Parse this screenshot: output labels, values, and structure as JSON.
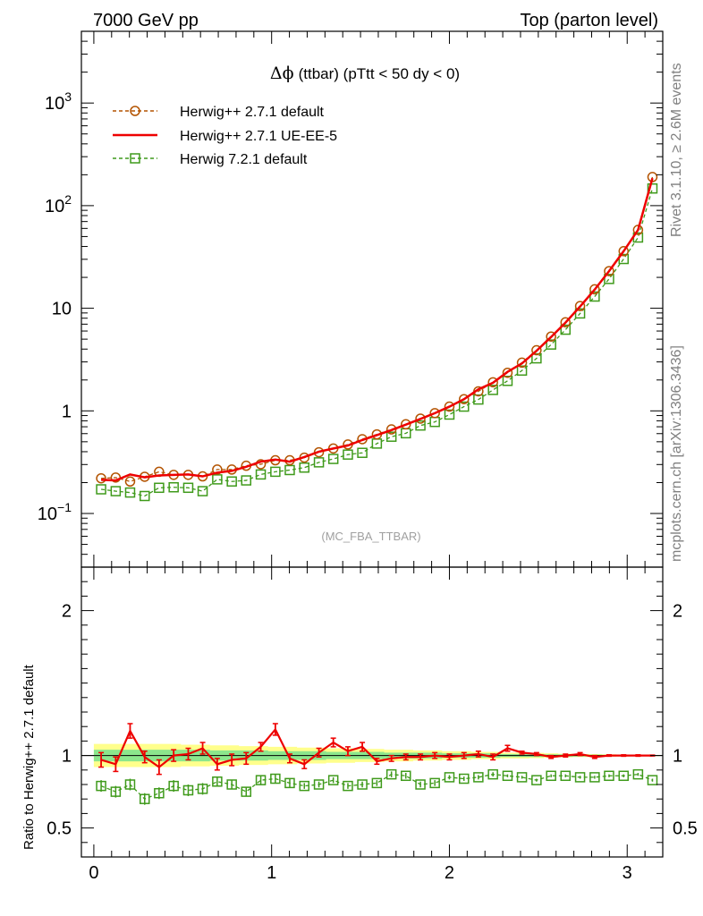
{
  "header": {
    "left_title": "7000 GeV pp",
    "right_title": "Top (parton level)"
  },
  "side_labels": {
    "rivet": "Rivet 3.1.10, ≥ 2.6M events",
    "mcplots": "mcplots.cern.ch [arXiv:1306.3436]"
  },
  "colors": {
    "herwigpp_default": "#b35300",
    "herwigpp_ueee5": "#ee0000",
    "herwig7": "#3f9a1b",
    "band_yellow": "#ffff8c",
    "band_green": "#8ce68c"
  },
  "chart_data": [
    {
      "type": "line",
      "title": "Δϕ (ttbar) (pTtt < 50 dy < 0)",
      "title_symbol": "Δϕ",
      "title_rest": "(ttbar) (pTtt < 50 dy < 0)",
      "watermark": "(MC_FBA_TTBAR)",
      "xlabel": "",
      "ylabel": "",
      "yscale": "log",
      "xlim": [
        -0.07,
        3.2
      ],
      "ylim": [
        0.03,
        5000
      ],
      "y_ticks": [
        {
          "value": 0.1,
          "base": "10",
          "exp": "−1"
        },
        {
          "value": 1,
          "base": "1",
          "exp": ""
        },
        {
          "value": 10,
          "base": "10",
          "exp": ""
        },
        {
          "value": 100,
          "base": "10",
          "exp": "2"
        },
        {
          "value": 1000,
          "base": "10",
          "exp": "3"
        }
      ],
      "legend_position": "top-left",
      "x": [
        0.041,
        0.123,
        0.204,
        0.286,
        0.367,
        0.449,
        0.531,
        0.612,
        0.694,
        0.776,
        0.857,
        0.939,
        1.021,
        1.102,
        1.184,
        1.266,
        1.347,
        1.429,
        1.51,
        1.592,
        1.674,
        1.755,
        1.837,
        1.918,
        2.0,
        2.082,
        2.163,
        2.245,
        2.327,
        2.408,
        2.49,
        2.572,
        2.653,
        2.735,
        2.817,
        2.898,
        2.98,
        3.061,
        3.142
      ],
      "series": [
        {
          "name": "Herwig++ 2.7.1 default",
          "style": "dashed line with open circles",
          "values": [
            0.22,
            0.224,
            0.205,
            0.228,
            0.255,
            0.238,
            0.238,
            0.23,
            0.268,
            0.268,
            0.292,
            0.302,
            0.33,
            0.33,
            0.35,
            0.395,
            0.43,
            0.47,
            0.53,
            0.59,
            0.66,
            0.74,
            0.84,
            0.95,
            1.1,
            1.3,
            1.55,
            1.9,
            2.35,
            2.95,
            3.9,
            5.3,
            7.3,
            10.5,
            15.3,
            23.0,
            36.0,
            58.0,
            190.0
          ]
        },
        {
          "name": "Herwig++ 2.7.1 UE-EE-5",
          "style": "solid line with error bars",
          "values": [
            0.213,
            0.21,
            0.24,
            0.225,
            0.235,
            0.238,
            0.24,
            0.23,
            0.25,
            0.26,
            0.285,
            0.32,
            0.335,
            0.32,
            0.355,
            0.4,
            0.43,
            0.46,
            0.52,
            0.58,
            0.65,
            0.735,
            0.835,
            0.95,
            1.1,
            1.3,
            1.62,
            1.88,
            2.4,
            2.9,
            3.85,
            5.25,
            7.25,
            10.4,
            15.2,
            23.0,
            36.0,
            58.0,
            185.0
          ]
        },
        {
          "name": "Herwig 7.2.1 default",
          "style": "dashed line with open squares",
          "values": [
            0.172,
            0.165,
            0.16,
            0.148,
            0.178,
            0.18,
            0.178,
            0.165,
            0.215,
            0.205,
            0.21,
            0.24,
            0.255,
            0.265,
            0.28,
            0.315,
            0.34,
            0.375,
            0.39,
            0.48,
            0.56,
            0.605,
            0.72,
            0.78,
            0.92,
            1.1,
            1.29,
            1.6,
            1.96,
            2.47,
            3.25,
            4.43,
            6.18,
            8.9,
            13.0,
            19.3,
            30.2,
            48.9,
            147.0
          ]
        }
      ]
    },
    {
      "type": "line",
      "title": "",
      "xlabel": "",
      "ylabel": "Ratio to Herwig++ 2.7.1 default",
      "xlim": [
        -0.07,
        3.2
      ],
      "ylim": [
        0.3,
        2.3
      ],
      "x_ticks": [
        "0",
        "1",
        "2",
        "3"
      ],
      "y_ticks": [
        "0.5",
        "1",
        "2"
      ],
      "reference_band": {
        "inner_halfwidth": [
          0.04,
          0.04,
          0.04,
          0.04,
          0.04,
          0.04,
          0.04,
          0.04,
          0.035,
          0.035,
          0.035,
          0.035,
          0.03,
          0.03,
          0.03,
          0.03,
          0.025,
          0.025,
          0.025,
          0.025,
          0.02,
          0.02,
          0.02,
          0.02,
          0.015,
          0.015,
          0.015,
          0.015,
          0.01,
          0.01,
          0.01,
          0.008,
          0.008,
          0.006,
          0.006,
          0.005,
          0.004,
          0.003,
          0.002
        ],
        "outer_halfwidth": [
          0.08,
          0.08,
          0.08,
          0.08,
          0.08,
          0.08,
          0.075,
          0.075,
          0.07,
          0.07,
          0.065,
          0.065,
          0.06,
          0.06,
          0.055,
          0.055,
          0.05,
          0.05,
          0.045,
          0.045,
          0.04,
          0.04,
          0.035,
          0.035,
          0.03,
          0.03,
          0.025,
          0.025,
          0.02,
          0.02,
          0.018,
          0.015,
          0.012,
          0.01,
          0.01,
          0.008,
          0.006,
          0.005,
          0.004
        ]
      },
      "series": [
        {
          "name": "Herwig++ 2.7.1 UE-EE-5",
          "values": [
            0.97,
            0.94,
            1.17,
            0.99,
            0.92,
            1.0,
            1.01,
            1.05,
            0.94,
            0.97,
            0.98,
            1.06,
            1.18,
            0.98,
            0.94,
            1.02,
            1.09,
            1.03,
            1.06,
            0.96,
            0.98,
            0.99,
            0.99,
            1.0,
            0.99,
            1.0,
            1.01,
            0.99,
            1.05,
            1.02,
            1.01,
            0.99,
            1.0,
            1.01,
            0.99,
            1.0,
            1.0,
            1.0,
            1.0
          ],
          "errors": [
            0.05,
            0.05,
            0.05,
            0.04,
            0.05,
            0.04,
            0.04,
            0.04,
            0.04,
            0.04,
            0.04,
            0.03,
            0.04,
            0.03,
            0.03,
            0.03,
            0.03,
            0.03,
            0.03,
            0.02,
            0.02,
            0.02,
            0.02,
            0.02,
            0.02,
            0.02,
            0.02,
            0.02,
            0.02,
            0.01,
            0.01,
            0.01,
            0.01,
            0.01,
            0.01,
            0.005,
            0.005,
            0.005,
            0.003
          ]
        },
        {
          "name": "Herwig 7.2.1 default",
          "values": [
            0.79,
            0.75,
            0.8,
            0.7,
            0.74,
            0.79,
            0.76,
            0.77,
            0.82,
            0.8,
            0.75,
            0.83,
            0.84,
            0.81,
            0.79,
            0.8,
            0.83,
            0.79,
            0.8,
            0.81,
            0.87,
            0.86,
            0.8,
            0.81,
            0.85,
            0.84,
            0.85,
            0.87,
            0.86,
            0.85,
            0.83,
            0.86,
            0.86,
            0.85,
            0.85,
            0.86,
            0.86,
            0.87,
            0.83
          ],
          "errors": [
            0.04,
            0.04,
            0.04,
            0.04,
            0.04,
            0.04,
            0.04,
            0.04,
            0.03,
            0.03,
            0.03,
            0.03,
            0.03,
            0.03,
            0.02,
            0.02,
            0.02,
            0.02,
            0.02,
            0.02,
            0.02,
            0.02,
            0.02,
            0.02,
            0.015,
            0.015,
            0.015,
            0.015,
            0.01,
            0.01,
            0.01,
            0.01,
            0.01,
            0.01,
            0.01,
            0.01,
            0.01,
            0.01,
            0.01
          ]
        }
      ]
    }
  ]
}
